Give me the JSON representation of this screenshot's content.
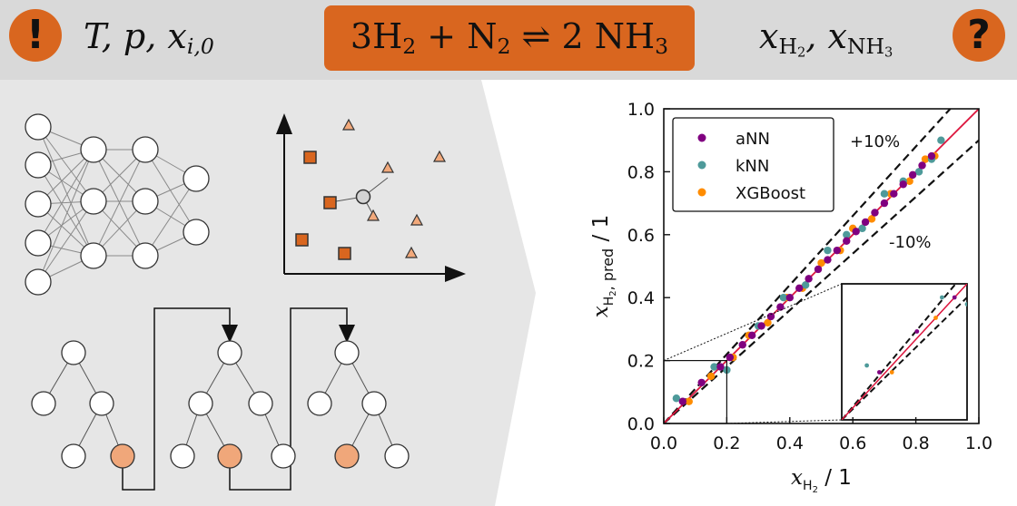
{
  "header": {
    "input_badge": "!",
    "input_vars": "T, p, x",
    "input_sub": "i,0",
    "reaction": {
      "a": "3H",
      "a_sub": "2",
      "b": " + N",
      "b_sub": "2",
      "arrow": " ⇌ ",
      "c": "2 NH",
      "c_sub": "3"
    },
    "output_vars_1": "x",
    "output_sub_1": "H",
    "output_sub_1b": "2",
    "output_sep": ", x",
    "output_sub_2": "NH",
    "output_sub_2b": "3",
    "output_badge": "?"
  },
  "colors": {
    "accent": "#d9661f",
    "bar": "#d9d9d9",
    "panel": "#e6e6e6",
    "ann": "#800080",
    "knn": "#4e9a9a",
    "xgb": "#ff8c00",
    "parity": "#dc143c"
  },
  "chart_data": {
    "type": "scatter",
    "xlabel": "x_H2 / 1",
    "ylabel": "x_H2, pred / 1",
    "xlim": [
      0.0,
      1.0
    ],
    "ylim": [
      0.0,
      1.0
    ],
    "xticks": [
      "0.0",
      "0.2",
      "0.4",
      "0.6",
      "0.8",
      "1.0"
    ],
    "yticks": [
      "0.0",
      "0.2",
      "0.4",
      "0.6",
      "0.8",
      "1.0"
    ],
    "legend_position": "top-left",
    "annotations": [
      "+10%",
      "-10%"
    ],
    "bands": [
      1.1,
      0.9
    ],
    "inset_region": {
      "x": [
        0.0,
        0.2
      ],
      "y": [
        0.0,
        0.2
      ]
    },
    "series": [
      {
        "name": "aNN",
        "x": [
          0.06,
          0.12,
          0.18,
          0.21,
          0.25,
          0.28,
          0.31,
          0.34,
          0.37,
          0.4,
          0.43,
          0.46,
          0.49,
          0.52,
          0.55,
          0.58,
          0.61,
          0.64,
          0.67,
          0.7,
          0.73,
          0.76,
          0.79,
          0.82,
          0.85
        ],
        "y": [
          0.07,
          0.13,
          0.18,
          0.21,
          0.25,
          0.28,
          0.31,
          0.34,
          0.37,
          0.4,
          0.43,
          0.46,
          0.49,
          0.52,
          0.55,
          0.58,
          0.61,
          0.64,
          0.67,
          0.7,
          0.73,
          0.76,
          0.79,
          0.82,
          0.85
        ]
      },
      {
        "name": "kNN",
        "x": [
          0.04,
          0.16,
          0.2,
          0.3,
          0.38,
          0.45,
          0.52,
          0.58,
          0.63,
          0.7,
          0.76,
          0.81,
          0.85,
          0.88
        ],
        "y": [
          0.08,
          0.18,
          0.17,
          0.31,
          0.4,
          0.44,
          0.55,
          0.6,
          0.62,
          0.73,
          0.77,
          0.8,
          0.84,
          0.9
        ]
      },
      {
        "name": "XGBoost",
        "x": [
          0.08,
          0.15,
          0.22,
          0.27,
          0.33,
          0.39,
          0.44,
          0.5,
          0.56,
          0.6,
          0.66,
          0.72,
          0.78,
          0.83,
          0.86
        ],
        "y": [
          0.07,
          0.15,
          0.21,
          0.28,
          0.32,
          0.4,
          0.43,
          0.51,
          0.55,
          0.62,
          0.65,
          0.73,
          0.77,
          0.84,
          0.85
        ]
      }
    ]
  }
}
